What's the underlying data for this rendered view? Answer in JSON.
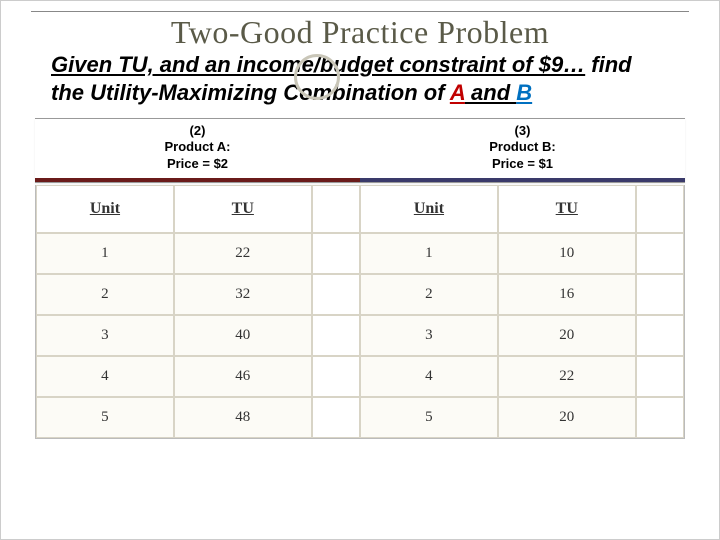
{
  "title": "Two-Good Practice Problem",
  "subtitle": {
    "part1": "Given TU, and an income/budget constraint of $9…",
    "part2": " find the Utility-Maximizing Combination of ",
    "a": "A",
    "and": " and ",
    "b": "B"
  },
  "table": {
    "headerA": {
      "line1": "(2)",
      "line2": "Product A:",
      "line3": "Price = $2"
    },
    "headerB": {
      "line1": "(3)",
      "line2": "Product B:",
      "line3": "Price = $1"
    },
    "col_unit": "Unit",
    "col_tu": "TU",
    "productA": {
      "rows": [
        {
          "unit": "1",
          "tu": "22"
        },
        {
          "unit": "2",
          "tu": "32"
        },
        {
          "unit": "3",
          "tu": "40"
        },
        {
          "unit": "4",
          "tu": "46"
        },
        {
          "unit": "5",
          "tu": "48"
        }
      ]
    },
    "productB": {
      "rows": [
        {
          "unit": "1",
          "tu": "10"
        },
        {
          "unit": "2",
          "tu": "16"
        },
        {
          "unit": "3",
          "tu": "20"
        },
        {
          "unit": "4",
          "tu": "22"
        },
        {
          "unit": "5",
          "tu": "20"
        }
      ]
    }
  },
  "colors": {
    "title": "#5a5a48",
    "circle": "#c9c6b8",
    "red": "#c00000",
    "blue": "#0070c0",
    "accentA": "#6a1b1a",
    "accentB": "#3a3a6a",
    "cellBg": "#fcfbf6",
    "cellBorder": "#d8d4c6"
  }
}
